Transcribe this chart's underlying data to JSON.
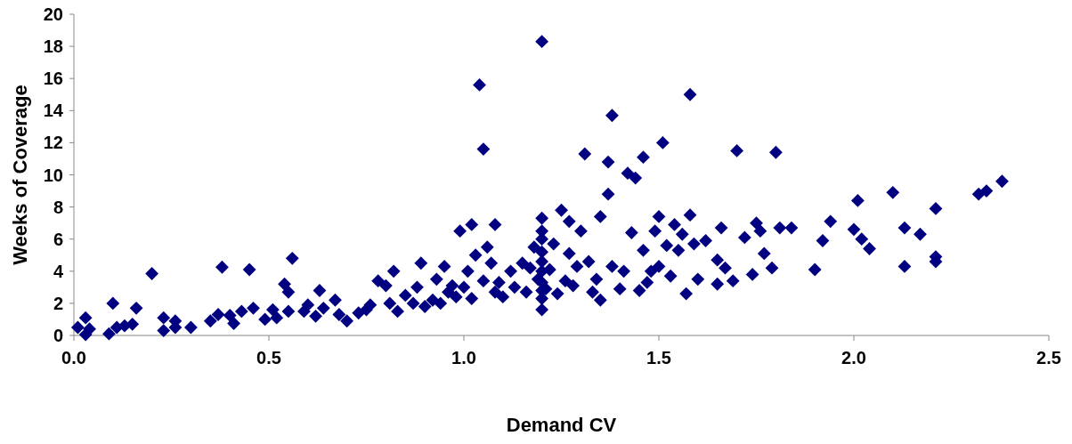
{
  "chart_data": {
    "type": "scatter",
    "xlabel": "Demand CV",
    "ylabel": "Weeks of Coverage",
    "xlim": [
      0,
      2.5
    ],
    "ylim": [
      0,
      20
    ],
    "xticks": [
      {
        "value": 0,
        "label": "0.0"
      },
      {
        "value": 0.5,
        "label": "0.5"
      },
      {
        "value": 1,
        "label": "1.0"
      },
      {
        "value": 1.5,
        "label": "1.5"
      },
      {
        "value": 2,
        "label": "2.0"
      },
      {
        "value": 2.5,
        "label": "2.5"
      }
    ],
    "yticks": [
      0,
      2,
      4,
      6,
      8,
      10,
      12,
      14,
      16,
      18,
      20
    ],
    "grid": false,
    "marker": "diamond",
    "series": [
      {
        "color": "#000080",
        "x": [
          0.01,
          0.03,
          0.03,
          0.04,
          0.09,
          0.1,
          0.11,
          0.13,
          0.15,
          0.16,
          0.2,
          0.23,
          0.23,
          0.26,
          0.26,
          0.3,
          0.35,
          0.37,
          0.38,
          0.4,
          0.41,
          0.43,
          0.45,
          0.46,
          0.49,
          0.51,
          0.52,
          0.54,
          0.55,
          0.56,
          0.55,
          0.59,
          0.6,
          0.62,
          0.63,
          0.64,
          0.67,
          0.68,
          0.7,
          0.73,
          0.75,
          0.76,
          0.78,
          0.8,
          0.81,
          0.82,
          0.83,
          0.85,
          0.87,
          0.88,
          0.89,
          0.9,
          0.92,
          0.93,
          0.94,
          0.95,
          0.96,
          0.97,
          0.98,
          0.99,
          1.0,
          1.01,
          1.02,
          1.02,
          1.03,
          1.04,
          1.05,
          1.05,
          1.06,
          1.07,
          1.08,
          1.08,
          1.09,
          1.1,
          1.12,
          1.13,
          1.15,
          1.16,
          1.17,
          1.18,
          1.19,
          1.2,
          1.2,
          1.2,
          1.2,
          1.2,
          1.2,
          1.2,
          1.2,
          1.2,
          1.2,
          1.2,
          1.21,
          1.22,
          1.23,
          1.24,
          1.25,
          1.26,
          1.27,
          1.27,
          1.28,
          1.29,
          1.3,
          1.31,
          1.32,
          1.33,
          1.34,
          1.35,
          1.35,
          1.37,
          1.37,
          1.38,
          1.38,
          1.4,
          1.41,
          1.42,
          1.43,
          1.44,
          1.45,
          1.46,
          1.46,
          1.47,
          1.48,
          1.49,
          1.5,
          1.5,
          1.51,
          1.52,
          1.53,
          1.54,
          1.55,
          1.56,
          1.57,
          1.58,
          1.58,
          1.59,
          1.6,
          1.62,
          1.65,
          1.65,
          1.66,
          1.67,
          1.69,
          1.7,
          1.72,
          1.74,
          1.75,
          1.76,
          1.77,
          1.79,
          1.8,
          1.81,
          1.84,
          1.9,
          1.92,
          1.94,
          2.0,
          2.01,
          2.02,
          2.04,
          2.1,
          2.13,
          2.13,
          2.17,
          2.21,
          2.21,
          2.21,
          2.32,
          2.34,
          2.38
        ],
        "values": [
          0.5,
          1.1,
          0.05,
          0.4,
          0.1,
          2.0,
          0.5,
          0.6,
          0.7,
          1.7,
          3.85,
          0.3,
          1.1,
          0.5,
          0.9,
          0.5,
          0.9,
          1.3,
          4.25,
          1.25,
          0.75,
          1.5,
          4.1,
          1.7,
          1.0,
          1.6,
          1.1,
          3.2,
          2.7,
          4.8,
          1.5,
          1.5,
          1.9,
          1.2,
          2.8,
          1.7,
          2.2,
          1.3,
          0.9,
          1.4,
          1.6,
          1.9,
          3.4,
          3.1,
          2.0,
          4.0,
          1.5,
          2.5,
          2.0,
          3.0,
          4.5,
          1.8,
          2.2,
          3.5,
          2.0,
          4.3,
          2.7,
          3.1,
          2.4,
          6.5,
          3.0,
          4.0,
          6.9,
          2.3,
          5.0,
          15.6,
          11.6,
          3.4,
          5.5,
          4.5,
          6.9,
          2.7,
          3.3,
          2.4,
          4.0,
          3.0,
          4.5,
          2.7,
          4.2,
          5.5,
          3.5,
          18.3,
          7.3,
          6.5,
          6.0,
          5.2,
          4.6,
          4.0,
          3.3,
          2.8,
          2.3,
          1.6,
          2.9,
          4.1,
          5.7,
          2.6,
          7.8,
          3.4,
          7.1,
          5.1,
          3.1,
          4.3,
          6.5,
          11.3,
          4.6,
          2.7,
          3.5,
          7.4,
          2.2,
          10.8,
          8.8,
          13.7,
          4.3,
          2.9,
          4.0,
          10.1,
          6.4,
          9.8,
          2.8,
          11.1,
          5.3,
          3.3,
          4.0,
          6.5,
          7.4,
          4.3,
          12.0,
          5.6,
          3.7,
          6.9,
          5.3,
          6.3,
          2.6,
          7.5,
          15.0,
          5.7,
          3.5,
          5.9,
          3.2,
          4.7,
          6.7,
          4.2,
          3.4,
          11.5,
          6.1,
          3.8,
          7.0,
          6.5,
          5.1,
          4.2,
          11.4,
          6.7,
          6.7,
          4.1,
          5.9,
          7.1,
          6.6,
          8.4,
          6.0,
          5.4,
          8.9,
          4.3,
          6.7,
          6.3,
          7.9,
          4.9,
          4.6,
          8.8,
          9.0,
          9.6
        ]
      }
    ]
  }
}
